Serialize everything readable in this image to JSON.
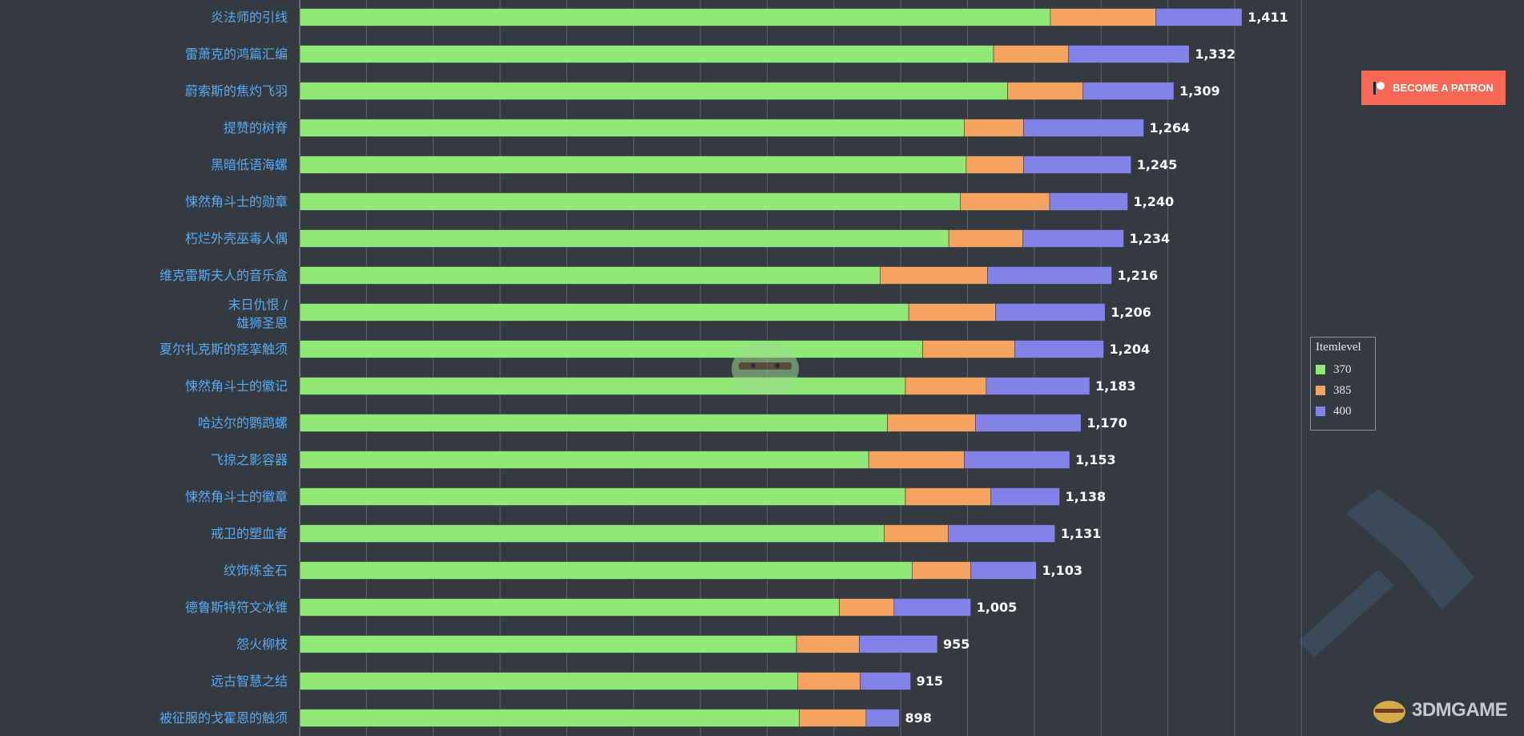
{
  "chart_data": {
    "type": "bar",
    "orientation": "horizontal",
    "stacked": true,
    "categories": [
      "炎法师的引线",
      "雷萧克的鸿篇汇编",
      "蔚索斯的焦灼飞羽",
      "提赞的树脊",
      "黑暗低语海螺",
      "悚然角斗士的勋章",
      "朽烂外壳巫毒人偶",
      "维克雷斯夫人的音乐盒",
      "末日仇恨 / 雄狮圣恩",
      "夏尔扎克斯的痉挛触须",
      "悚然角斗士的徽记",
      "哈达尔的鹦鹉螺",
      "飞掠之影容器",
      "悚然角斗士的徽章",
      "戒卫的塑血者",
      "纹饰炼金石",
      "德鲁斯特符文冰锥",
      "怨火柳枝",
      "远古智慧之结",
      "被征服的戈霍恩的触须"
    ],
    "series": [
      {
        "name": "370",
        "values": [
          1124,
          1039,
          1060,
          995,
          998,
          989,
          972,
          869,
          912,
          933,
          907,
          880,
          852,
          907,
          875,
          917,
          808,
          744,
          746,
          748
        ]
      },
      {
        "name": "385",
        "values": [
          158,
          112,
          113,
          89,
          86,
          134,
          111,
          161,
          130,
          138,
          121,
          132,
          143,
          128,
          96,
          88,
          82,
          94,
          93,
          100
        ]
      },
      {
        "name": "400",
        "values": [
          129,
          181,
          136,
          180,
          161,
          117,
          151,
          186,
          164,
          133,
          155,
          158,
          158,
          103,
          160,
          98,
          115,
          117,
          76,
          50
        ]
      }
    ],
    "totals": [
      "1,411",
      "1,332",
      "1,309",
      "1,264",
      "1,245",
      "1,240",
      "1,234",
      "1,216",
      "1,206",
      "1,204",
      "1,183",
      "1,170",
      "1,153",
      "1,138",
      "1,131",
      "1,103",
      "1,005",
      "955",
      "915",
      "898"
    ],
    "xlim": [
      0,
      1500
    ],
    "grid": true,
    "legend_title": "Itemlevel",
    "legend_position": "right",
    "colors": [
      "#90e878",
      "#f4a460",
      "#8282e8"
    ]
  },
  "patron_button": {
    "label": "BECOME A PATRON",
    "color": "#f96854"
  },
  "watermark": {
    "brand": "3DMGAME"
  }
}
